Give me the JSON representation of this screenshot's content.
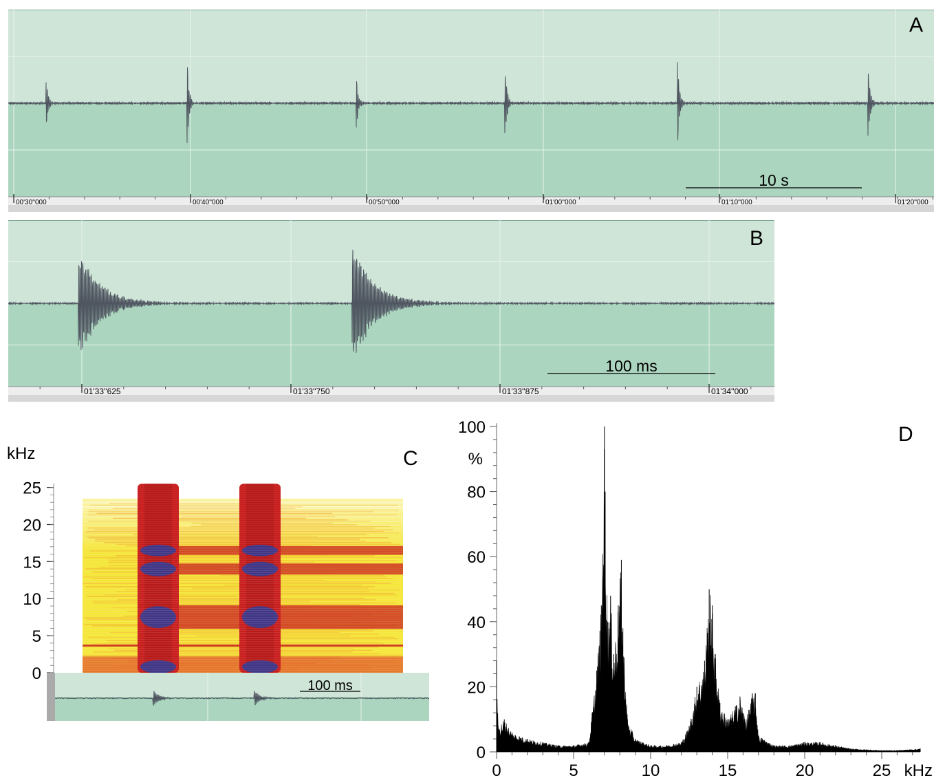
{
  "colors": {
    "wave_bg_upper": "#cfe5d8",
    "wave_bg_lower": "#abd5bf",
    "wave_grid": "#e9f3ee",
    "wave_trace": "#4f5560",
    "ruler_bg": "#eeeeee",
    "ruler_bar": "#d6d6d6",
    "spectrum_fill": "#000000",
    "spectrogram_low": "#f5e63a",
    "spectrogram_mid": "#c81e1e",
    "spectrogram_high": "#2b3c9a"
  },
  "panel_a": {
    "letter": "A",
    "scale_label": "10 s",
    "time_ticks": [
      "00'30''000",
      "00'40''000",
      "00'50''000",
      "01'00''000",
      "01'10''000",
      "01'20''000"
    ],
    "bursts_s": [
      31.8,
      39.8,
      49.4,
      57.8,
      67.6,
      78.4
    ]
  },
  "panel_b": {
    "letter": "B",
    "scale_label": "100 ms",
    "time_ticks": [
      "01'33''625",
      "01'33''750",
      "01'33''875",
      "01'34''000"
    ],
    "bursts_ms": [
      0,
      162
    ]
  },
  "panel_c": {
    "letter": "C",
    "y_unit": "kHz",
    "y_ticks": [
      "0",
      "5",
      "10",
      "15",
      "20",
      "25"
    ],
    "scale_label": "100 ms"
  },
  "panel_d": {
    "letter": "D",
    "y_unit": "%",
    "x_unit": "kHz"
  },
  "chart_data": [
    {
      "type": "line",
      "panel": "A",
      "description_source": "oscillogram, multiple sound pulses",
      "x_ticks": [
        "00'30''000",
        "00'40''000",
        "00'50''000",
        "01'00''000",
        "01'10''000",
        "01'20''000"
      ],
      "pulse_times_s": [
        31.8,
        39.8,
        49.4,
        57.8,
        67.6,
        78.4
      ],
      "pulse_relative_amplitude": [
        0.55,
        0.85,
        0.45,
        0.9,
        0.8,
        0.85
      ],
      "scale_bar": "10 s"
    },
    {
      "type": "line",
      "panel": "B",
      "x_ticks": [
        "01'33''625",
        "01'33''750",
        "01'33''875",
        "01'34''000"
      ],
      "pulse_offsets_ms": [
        0,
        162
      ],
      "scale_bar": "100 ms"
    },
    {
      "type": "heatmap",
      "panel": "C",
      "ylabel": "kHz",
      "y_ticks": [
        0,
        5,
        10,
        15,
        20,
        25
      ],
      "ylim": [
        0,
        25
      ],
      "band_frequencies_khz": [
        7.5,
        14,
        16.5
      ],
      "pulse_offsets_ms": [
        0,
        162
      ],
      "scale_bar": "100 ms"
    },
    {
      "type": "area",
      "panel": "D",
      "xlabel": "kHz",
      "ylabel": "%",
      "x_ticks": [
        0,
        5,
        10,
        15,
        20,
        25
      ],
      "y_ticks": [
        0,
        20,
        40,
        60,
        80,
        100
      ],
      "xlim": [
        0,
        27.5
      ],
      "ylim": [
        0,
        100
      ],
      "x": [
        0,
        0.1,
        0.5,
        1.0,
        2.0,
        3.0,
        4.0,
        5.0,
        6.0,
        6.2,
        6.5,
        6.8,
        7.0,
        7.05,
        7.2,
        7.4,
        7.6,
        7.9,
        8.1,
        8.2,
        8.5,
        9.0,
        10.0,
        11.0,
        12.0,
        12.5,
        13.0,
        13.5,
        13.8,
        14.0,
        14.2,
        14.5,
        15.0,
        15.5,
        15.8,
        16.2,
        16.6,
        16.8,
        17.0,
        18.0,
        19.0,
        20.0,
        21.0,
        22.0,
        23.0,
        25.0,
        26.0,
        27.5
      ],
      "values": [
        28,
        8,
        10,
        6,
        4,
        3,
        2,
        2,
        3,
        12,
        25,
        45,
        100,
        80,
        40,
        48,
        30,
        45,
        59,
        38,
        10,
        4,
        2,
        2,
        3,
        8,
        20,
        28,
        50,
        45,
        30,
        15,
        10,
        14,
        17,
        10,
        18,
        18,
        5,
        2,
        2,
        3,
        3,
        2,
        1,
        0.5,
        0.5,
        1
      ]
    }
  ]
}
